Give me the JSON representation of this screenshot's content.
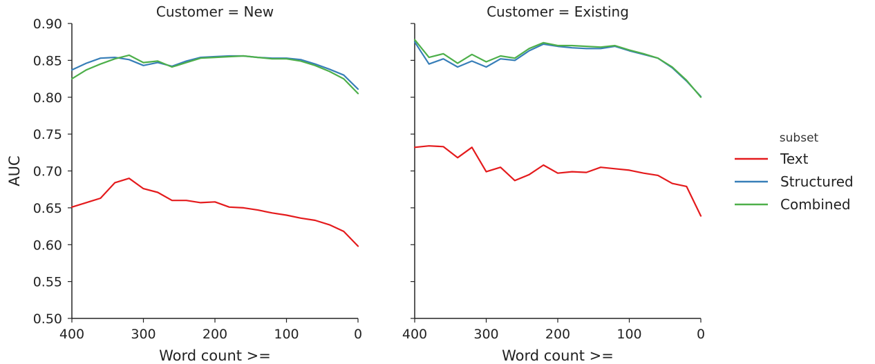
{
  "chart_data": {
    "type": "line",
    "y_axis_label": "AUC",
    "y_ticks": [
      "0.50",
      "0.55",
      "0.60",
      "0.65",
      "0.70",
      "0.75",
      "0.80",
      "0.85",
      "0.90"
    ],
    "ylim": [
      0.5,
      0.9
    ],
    "x_ticks": [
      "400",
      "300",
      "200",
      "100",
      "0"
    ],
    "xlim": [
      400,
      0
    ],
    "x_direction": "reversed",
    "grid": false,
    "legend": {
      "title": "subset",
      "placement": "right",
      "entries": [
        "Text",
        "Structured",
        "Combined"
      ]
    },
    "colors": {
      "Text": "#e41a1c",
      "Structured": "#377eb8",
      "Combined": "#4daf4a"
    },
    "x": [
      400,
      380,
      360,
      340,
      320,
      300,
      280,
      260,
      240,
      220,
      200,
      180,
      160,
      140,
      120,
      100,
      80,
      60,
      40,
      20,
      0
    ],
    "facets": [
      {
        "title": "Customer = New",
        "xlabel": "Word count >=",
        "series": [
          {
            "name": "Text",
            "values": [
              0.651,
              0.657,
              0.663,
              0.684,
              0.69,
              0.676,
              0.671,
              0.66,
              0.66,
              0.657,
              0.658,
              0.651,
              0.65,
              0.647,
              0.643,
              0.64,
              0.636,
              0.633,
              0.627,
              0.618,
              0.598
            ]
          },
          {
            "name": "Structured",
            "values": [
              0.837,
              0.846,
              0.853,
              0.854,
              0.851,
              0.843,
              0.847,
              0.842,
              0.849,
              0.854,
              0.855,
              0.856,
              0.856,
              0.854,
              0.853,
              0.853,
              0.851,
              0.845,
              0.838,
              0.83,
              0.811
            ]
          },
          {
            "name": "Combined",
            "values": [
              0.825,
              0.837,
              0.845,
              0.852,
              0.857,
              0.847,
              0.849,
              0.841,
              0.847,
              0.853,
              0.854,
              0.855,
              0.856,
              0.854,
              0.852,
              0.852,
              0.849,
              0.843,
              0.835,
              0.825,
              0.805
            ]
          }
        ]
      },
      {
        "title": "Customer = Existing",
        "xlabel": "Word count >=",
        "series": [
          {
            "name": "Text",
            "values": [
              0.732,
              0.734,
              0.733,
              0.718,
              0.732,
              0.699,
              0.705,
              0.687,
              0.695,
              0.708,
              0.697,
              0.699,
              0.698,
              0.705,
              0.703,
              0.701,
              0.697,
              0.694,
              0.683,
              0.679,
              0.639
            ]
          },
          {
            "name": "Structured",
            "values": [
              0.875,
              0.845,
              0.852,
              0.841,
              0.849,
              0.841,
              0.852,
              0.85,
              0.863,
              0.872,
              0.869,
              0.867,
              0.866,
              0.866,
              0.869,
              0.863,
              0.858,
              0.853,
              0.84,
              0.822,
              0.801
            ]
          },
          {
            "name": "Combined",
            "values": [
              0.878,
              0.854,
              0.859,
              0.846,
              0.858,
              0.848,
              0.856,
              0.853,
              0.866,
              0.874,
              0.87,
              0.87,
              0.869,
              0.868,
              0.87,
              0.864,
              0.859,
              0.853,
              0.841,
              0.823,
              0.8
            ]
          }
        ]
      }
    ]
  }
}
